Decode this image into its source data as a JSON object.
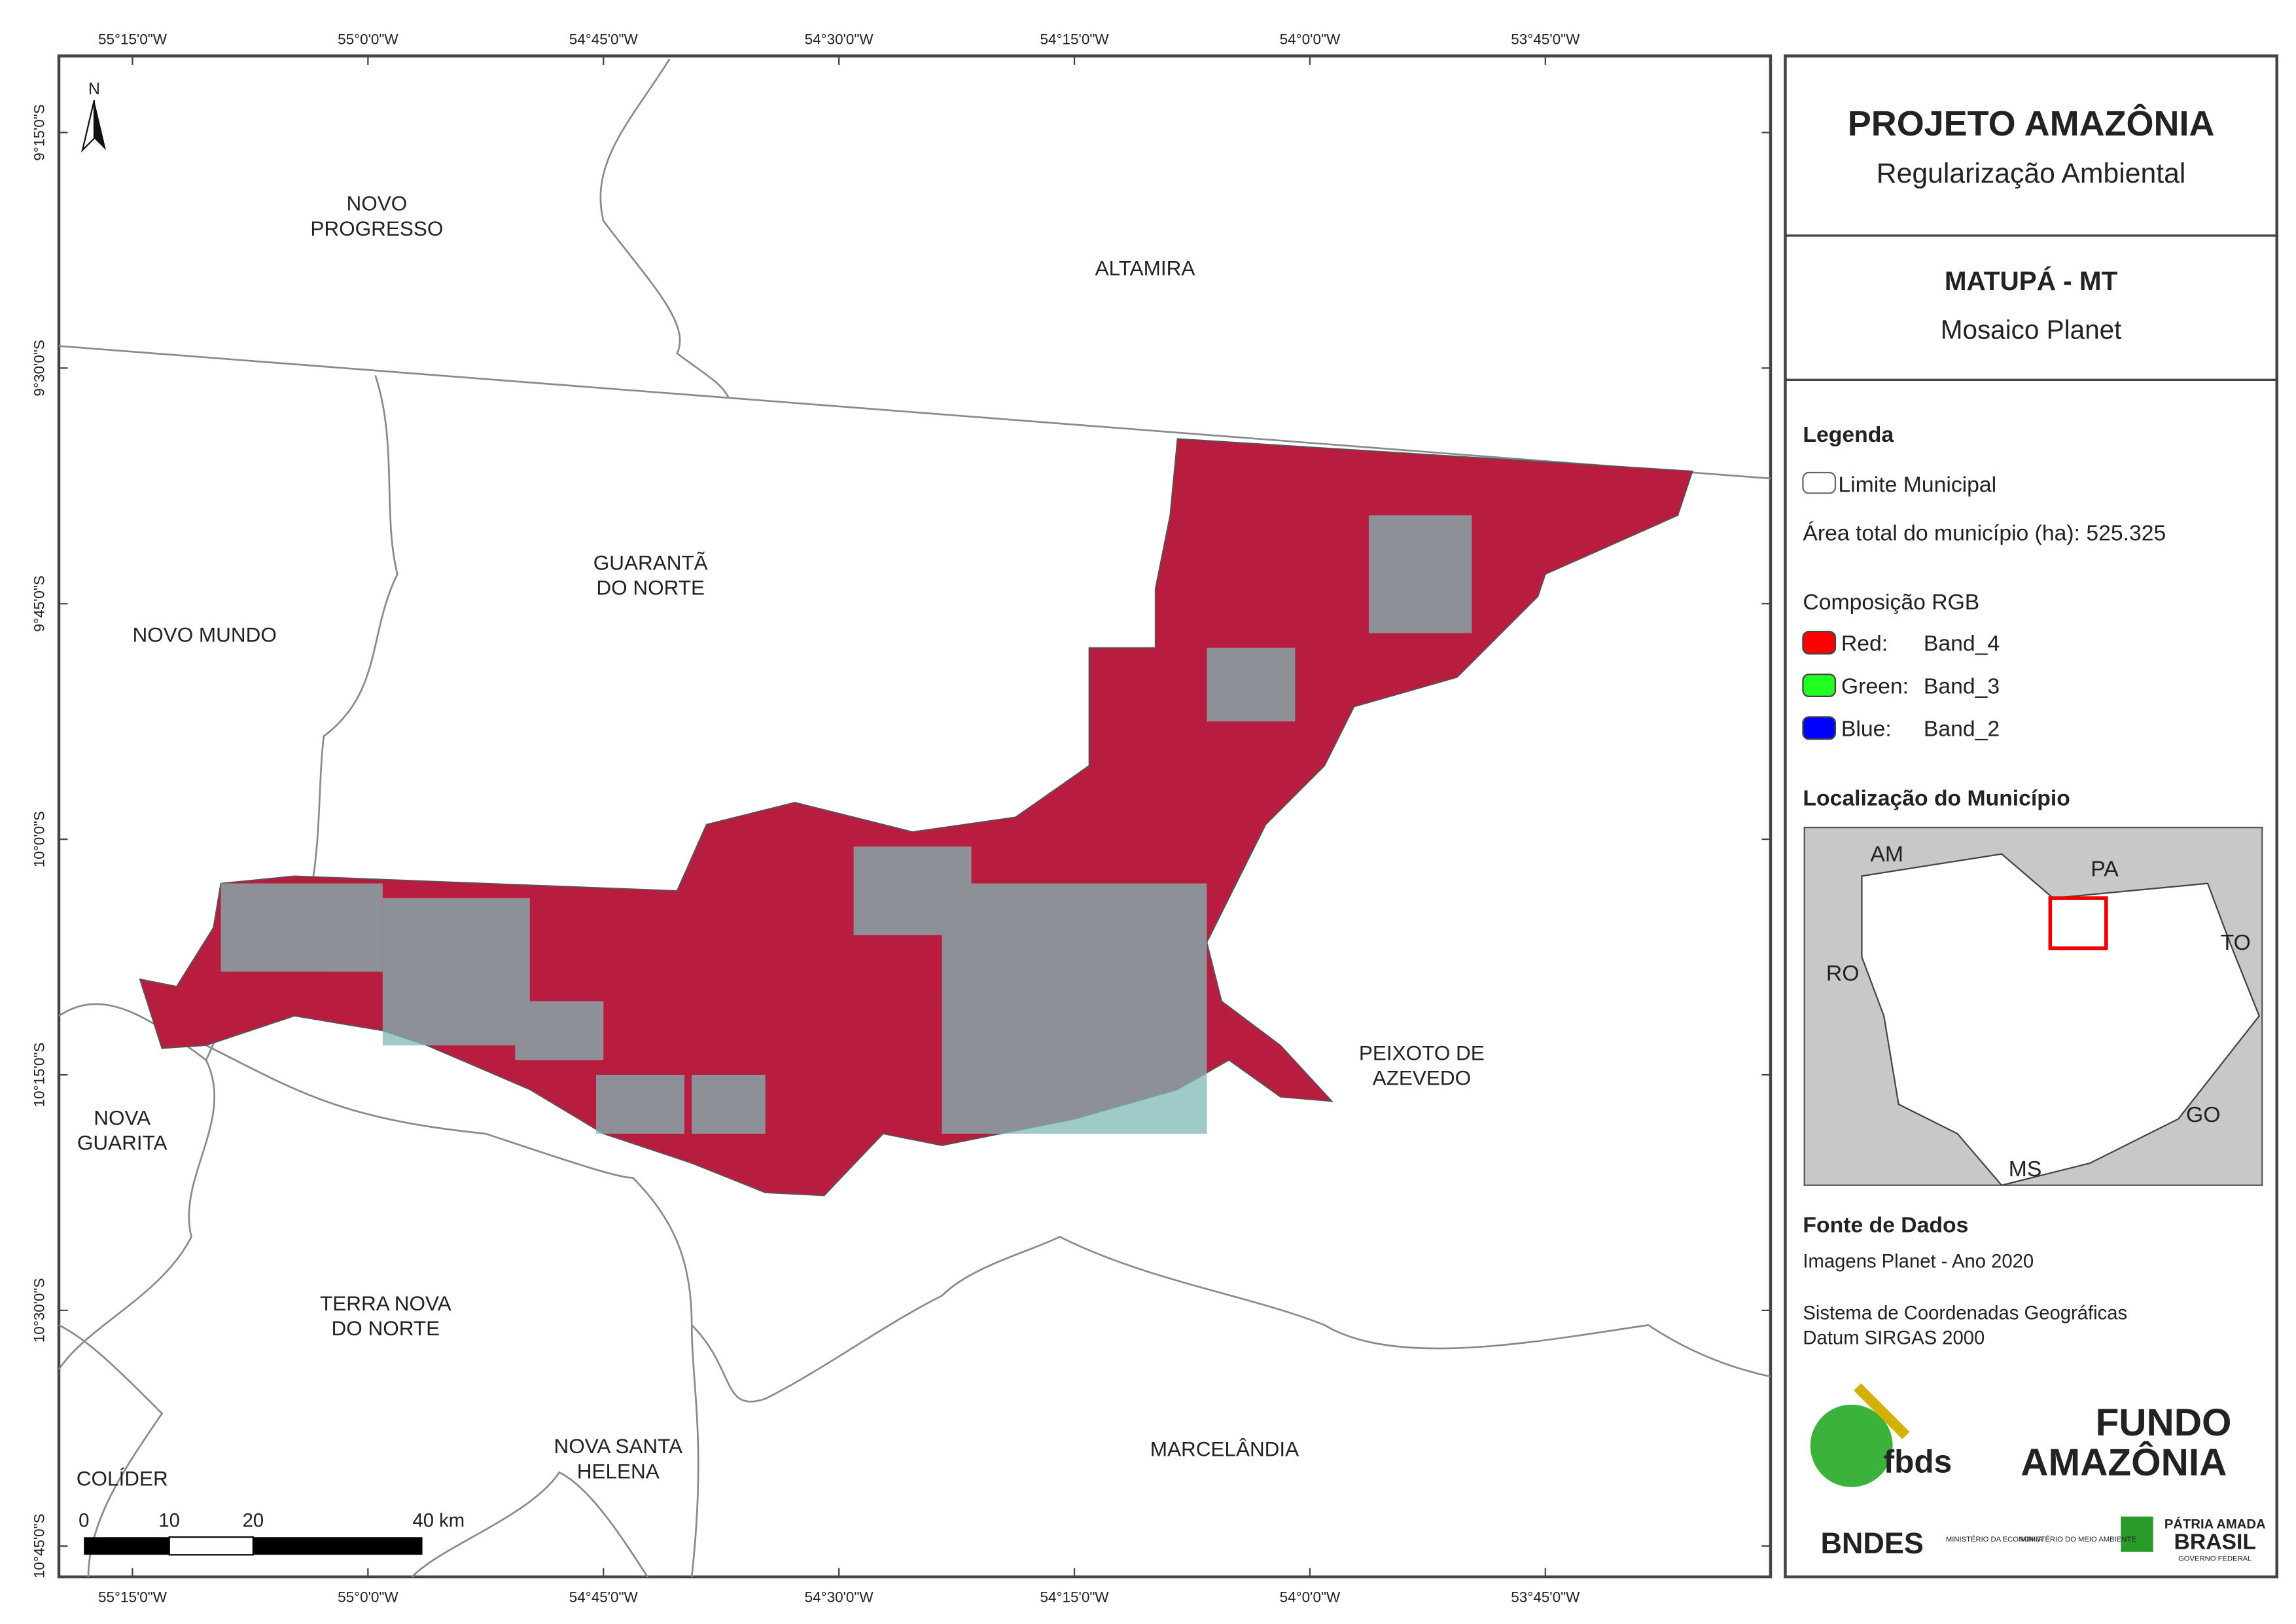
{
  "map": {
    "grid_labels": {
      "longitude": [
        "55°15'0\"W",
        "55°0'0\"W",
        "54°45'0\"W",
        "54°30'0\"W",
        "54°15'0\"W",
        "54°0'0\"W",
        "53°45'0\"W"
      ],
      "latitude": [
        "9°15'0\"S",
        "9°30'0\"S",
        "9°45'0\"S",
        "10°0'0\"S",
        "10°15'0\"S",
        "10°30'0\"S",
        "10°45'0\"S"
      ]
    },
    "north": "N",
    "municipalities": [
      {
        "lines": [
          "NOVO",
          "PROGRESSO"
        ]
      },
      {
        "lines": [
          "ALTAMIRA"
        ]
      },
      {
        "lines": [
          "GUARANTÃ",
          "DO NORTE"
        ]
      },
      {
        "lines": [
          "NOVO MUNDO"
        ]
      },
      {
        "lines": [
          "PEIXOTO DE",
          "AZEVEDO"
        ]
      },
      {
        "lines": [
          "NOVA",
          "GUARITA"
        ]
      },
      {
        "lines": [
          "TERRA NOVA",
          "DO NORTE"
        ]
      },
      {
        "lines": [
          "NOVA SANTA",
          "HELENA"
        ]
      },
      {
        "lines": [
          "MARCELÂNDIA"
        ]
      },
      {
        "lines": [
          "COLÍDER"
        ]
      }
    ],
    "scale_bar": [
      "0",
      "10",
      "20",
      "40 km"
    ]
  },
  "panel": {
    "title": "PROJETO AMAZÔNIA",
    "subtitle": "Regularização Ambiental",
    "municipality": "MATUPÁ - MT",
    "product": "Mosaico Planet",
    "legend": {
      "title": "Legenda",
      "boundary": "Limite Municipal",
      "area": "Área total do município (ha): 525.325",
      "rgb_title": "Composição RGB",
      "bands": [
        {
          "channel": "Red:",
          "band": "Band_4",
          "color": "#ff0000"
        },
        {
          "channel": "Green:",
          "band": "Band_3",
          "color": "#22ff22"
        },
        {
          "channel": "Blue:",
          "band": "Band_2",
          "color": "#0000ff"
        }
      ]
    },
    "location": {
      "title": "Localização do Município",
      "states": [
        "AM",
        "PA",
        "RO",
        "TO",
        "GO",
        "MS"
      ]
    },
    "sources": {
      "title": "Fonte de Dados",
      "lines": [
        "Imagens Planet - Ano 2020",
        "Sistema de Coordenadas Geográficas",
        "Datum SIRGAS 2000"
      ]
    },
    "logos": {
      "fbds": "fbds",
      "fundo": "FUNDO",
      "amazonia": "AMAZÔNIA",
      "bndes": "BNDES",
      "min_economia": "MINISTÉRIO DA ECONOMIA",
      "min_ambiente": "MINISTÉRIO DO MEIO AMBIENTE",
      "patria": "PÁTRIA AMADA",
      "brasil": "BRASIL",
      "governo": "GOVERNO FEDERAL"
    }
  }
}
